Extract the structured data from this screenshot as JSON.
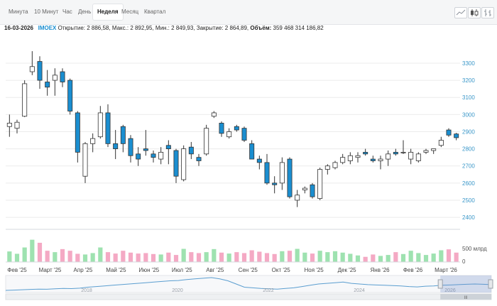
{
  "tabs": [
    {
      "label": "Минута",
      "active": false
    },
    {
      "label": "10 Минут",
      "active": false
    },
    {
      "label": "Час",
      "active": false
    },
    {
      "label": "День",
      "active": false
    },
    {
      "label": "Неделя",
      "active": true
    },
    {
      "label": "Месяц",
      "active": false
    },
    {
      "label": "Квартал",
      "active": false
    }
  ],
  "toolbar": {
    "icons": [
      "line-chart-icon",
      "candlestick-chart-icon",
      "bar-chart-icon"
    ]
  },
  "info": {
    "date": "16-03-2026",
    "ticker": "IMOEX",
    "open_label": "Открытие:",
    "open": "2 886,58",
    "high_label": "Макс.:",
    "high": "2 892,95",
    "low_label": "Мин.:",
    "low": "2 849,93",
    "close_label": "Закрытие:",
    "close": "2 864,89",
    "volume_label": "Объём:",
    "volume": "359 468 314 186,82"
  },
  "colors": {
    "up": "#ffffff",
    "down": "#1a8ed0",
    "vol_up": "#9ee2b0",
    "vol_down": "#f4a9c4",
    "axis_text": "#3a97c9",
    "grid": "#ebebeb"
  },
  "chart_data": {
    "type": "candlestick",
    "y_ticks": [
      2400,
      2500,
      2600,
      2700,
      2800,
      2900,
      3000,
      3100,
      3200,
      3300
    ],
    "ylim": [
      2330,
      3420
    ],
    "x_labels": [
      "Фев '25",
      "Март '25",
      "Апр '25",
      "Май '25",
      "Июн '25",
      "Июл '25",
      "Авг '25",
      "Сен '25",
      "Окт '25",
      "Ноя '25",
      "Дек '25",
      "Янв '26",
      "Фев '26",
      "Март '26"
    ],
    "volume_label": "500 млрд",
    "volume_zero_label": "0",
    "candles": [
      {
        "o": 2930,
        "h": 3000,
        "l": 2870,
        "c": 2950
      },
      {
        "o": 2920,
        "h": 2970,
        "l": 2890,
        "c": 2955
      },
      {
        "o": 2990,
        "h": 3200,
        "l": 2985,
        "c": 3180
      },
      {
        "o": 3250,
        "h": 3370,
        "l": 3230,
        "c": 3280
      },
      {
        "o": 3310,
        "h": 3340,
        "l": 3150,
        "c": 3200
      },
      {
        "o": 3190,
        "h": 3260,
        "l": 3110,
        "c": 3160
      },
      {
        "o": 3200,
        "h": 3270,
        "l": 3110,
        "c": 3230
      },
      {
        "o": 3250,
        "h": 3270,
        "l": 3160,
        "c": 3190
      },
      {
        "o": 3200,
        "h": 3210,
        "l": 3000,
        "c": 3020
      },
      {
        "o": 3010,
        "h": 3020,
        "l": 2720,
        "c": 2780
      },
      {
        "o": 2640,
        "h": 2840,
        "l": 2600,
        "c": 2830
      },
      {
        "o": 2830,
        "h": 2890,
        "l": 2780,
        "c": 2860
      },
      {
        "o": 2870,
        "h": 3050,
        "l": 2860,
        "c": 3010
      },
      {
        "o": 3010,
        "h": 3060,
        "l": 2810,
        "c": 2830
      },
      {
        "o": 2830,
        "h": 2910,
        "l": 2740,
        "c": 2800
      },
      {
        "o": 2930,
        "h": 2940,
        "l": 2780,
        "c": 2830
      },
      {
        "o": 2860,
        "h": 2880,
        "l": 2720,
        "c": 2760
      },
      {
        "o": 2770,
        "h": 2810,
        "l": 2700,
        "c": 2740
      },
      {
        "o": 2800,
        "h": 2910,
        "l": 2760,
        "c": 2790
      },
      {
        "o": 2770,
        "h": 2790,
        "l": 2720,
        "c": 2750
      },
      {
        "o": 2740,
        "h": 2810,
        "l": 2710,
        "c": 2780
      },
      {
        "o": 2820,
        "h": 2850,
        "l": 2710,
        "c": 2800
      },
      {
        "o": 2790,
        "h": 2800,
        "l": 2600,
        "c": 2640
      },
      {
        "o": 2620,
        "h": 2820,
        "l": 2610,
        "c": 2800
      },
      {
        "o": 2810,
        "h": 2840,
        "l": 2740,
        "c": 2770
      },
      {
        "o": 2750,
        "h": 2770,
        "l": 2700,
        "c": 2730
      },
      {
        "o": 2770,
        "h": 2940,
        "l": 2760,
        "c": 2920
      },
      {
        "o": 2990,
        "h": 3020,
        "l": 2980,
        "c": 3010
      },
      {
        "o": 2950,
        "h": 2960,
        "l": 2870,
        "c": 2890
      },
      {
        "o": 2870,
        "h": 2920,
        "l": 2860,
        "c": 2900
      },
      {
        "o": 2930,
        "h": 2940,
        "l": 2900,
        "c": 2910
      },
      {
        "o": 2920,
        "h": 2930,
        "l": 2840,
        "c": 2850
      },
      {
        "o": 2830,
        "h": 2850,
        "l": 2740,
        "c": 2740
      },
      {
        "o": 2740,
        "h": 2760,
        "l": 2680,
        "c": 2720
      },
      {
        "o": 2720,
        "h": 2770,
        "l": 2590,
        "c": 2600
      },
      {
        "o": 2600,
        "h": 2640,
        "l": 2540,
        "c": 2590
      },
      {
        "o": 2600,
        "h": 2750,
        "l": 2560,
        "c": 2720
      },
      {
        "o": 2740,
        "h": 2750,
        "l": 2510,
        "c": 2520
      },
      {
        "o": 2500,
        "h": 2560,
        "l": 2460,
        "c": 2530
      },
      {
        "o": 2560,
        "h": 2580,
        "l": 2540,
        "c": 2570
      },
      {
        "o": 2590,
        "h": 2600,
        "l": 2510,
        "c": 2520
      },
      {
        "o": 2510,
        "h": 2690,
        "l": 2500,
        "c": 2680
      },
      {
        "o": 2680,
        "h": 2710,
        "l": 2650,
        "c": 2700
      },
      {
        "o": 2690,
        "h": 2730,
        "l": 2680,
        "c": 2720
      },
      {
        "o": 2720,
        "h": 2770,
        "l": 2710,
        "c": 2750
      },
      {
        "o": 2730,
        "h": 2780,
        "l": 2710,
        "c": 2760
      },
      {
        "o": 2750,
        "h": 2780,
        "l": 2720,
        "c": 2760
      },
      {
        "o": 2780,
        "h": 2800,
        "l": 2760,
        "c": 2770
      },
      {
        "o": 2740,
        "h": 2760,
        "l": 2720,
        "c": 2730
      },
      {
        "o": 2730,
        "h": 2760,
        "l": 2680,
        "c": 2740
      },
      {
        "o": 2740,
        "h": 2790,
        "l": 2700,
        "c": 2770
      },
      {
        "o": 2780,
        "h": 2800,
        "l": 2760,
        "c": 2770
      },
      {
        "o": 2780,
        "h": 2850,
        "l": 2770,
        "c": 2780
      },
      {
        "o": 2740,
        "h": 2800,
        "l": 2710,
        "c": 2780
      },
      {
        "o": 2730,
        "h": 2780,
        "l": 2720,
        "c": 2770
      },
      {
        "o": 2780,
        "h": 2800,
        "l": 2770,
        "c": 2790
      },
      {
        "o": 2790,
        "h": 2800,
        "l": 2770,
        "c": 2800
      },
      {
        "o": 2820,
        "h": 2870,
        "l": 2810,
        "c": 2850
      },
      {
        "o": 2910,
        "h": 2920,
        "l": 2870,
        "c": 2880
      },
      {
        "o": 2886.58,
        "h": 2892.95,
        "l": 2849.93,
        "c": 2864.89
      }
    ],
    "volumes": [
      0.45,
      0.35,
      0.62,
      0.95,
      0.82,
      0.48,
      0.42,
      0.55,
      0.48,
      0.35,
      0.32,
      0.38,
      0.62,
      0.42,
      0.36,
      0.48,
      0.4,
      0.36,
      0.38,
      0.34,
      0.32,
      0.4,
      0.3,
      0.56,
      0.42,
      0.38,
      0.42,
      0.55,
      0.4,
      0.36,
      0.42,
      0.38,
      0.5,
      0.44,
      0.38,
      0.34,
      0.46,
      0.48,
      0.56,
      0.4,
      0.36,
      0.48,
      0.42,
      0.46,
      0.4,
      0.35,
      0.28,
      0.22,
      0.32,
      0.26,
      0.3,
      0.42,
      0.34,
      0.48,
      0.38,
      0.3,
      0.36,
      0.5,
      0.54,
      0.4
    ],
    "navigator": {
      "year_labels": [
        "2018",
        "2020",
        "2022",
        "2024",
        "2026"
      ],
      "series": [
        2000,
        2050,
        2100,
        2150,
        2200,
        2180,
        2250,
        2300,
        2280,
        2350,
        2500,
        2600,
        2700,
        2800,
        2900,
        3000,
        3100,
        3200,
        3300,
        3400,
        3500,
        3550,
        3700,
        3800,
        3900,
        4000,
        3800,
        3500,
        3000,
        2500,
        2400,
        2300,
        2250,
        2200,
        2300,
        2400,
        2600,
        2800,
        3000,
        3100,
        3200,
        3300,
        3100,
        3000,
        2900,
        2850,
        2800,
        2750,
        2700,
        2600,
        2550,
        2650,
        2700,
        2800,
        2850,
        2900,
        2950,
        3000,
        2950,
        2900
      ],
      "selection_range": [
        0.895,
        1.0
      ],
      "handle_label": "III"
    }
  }
}
